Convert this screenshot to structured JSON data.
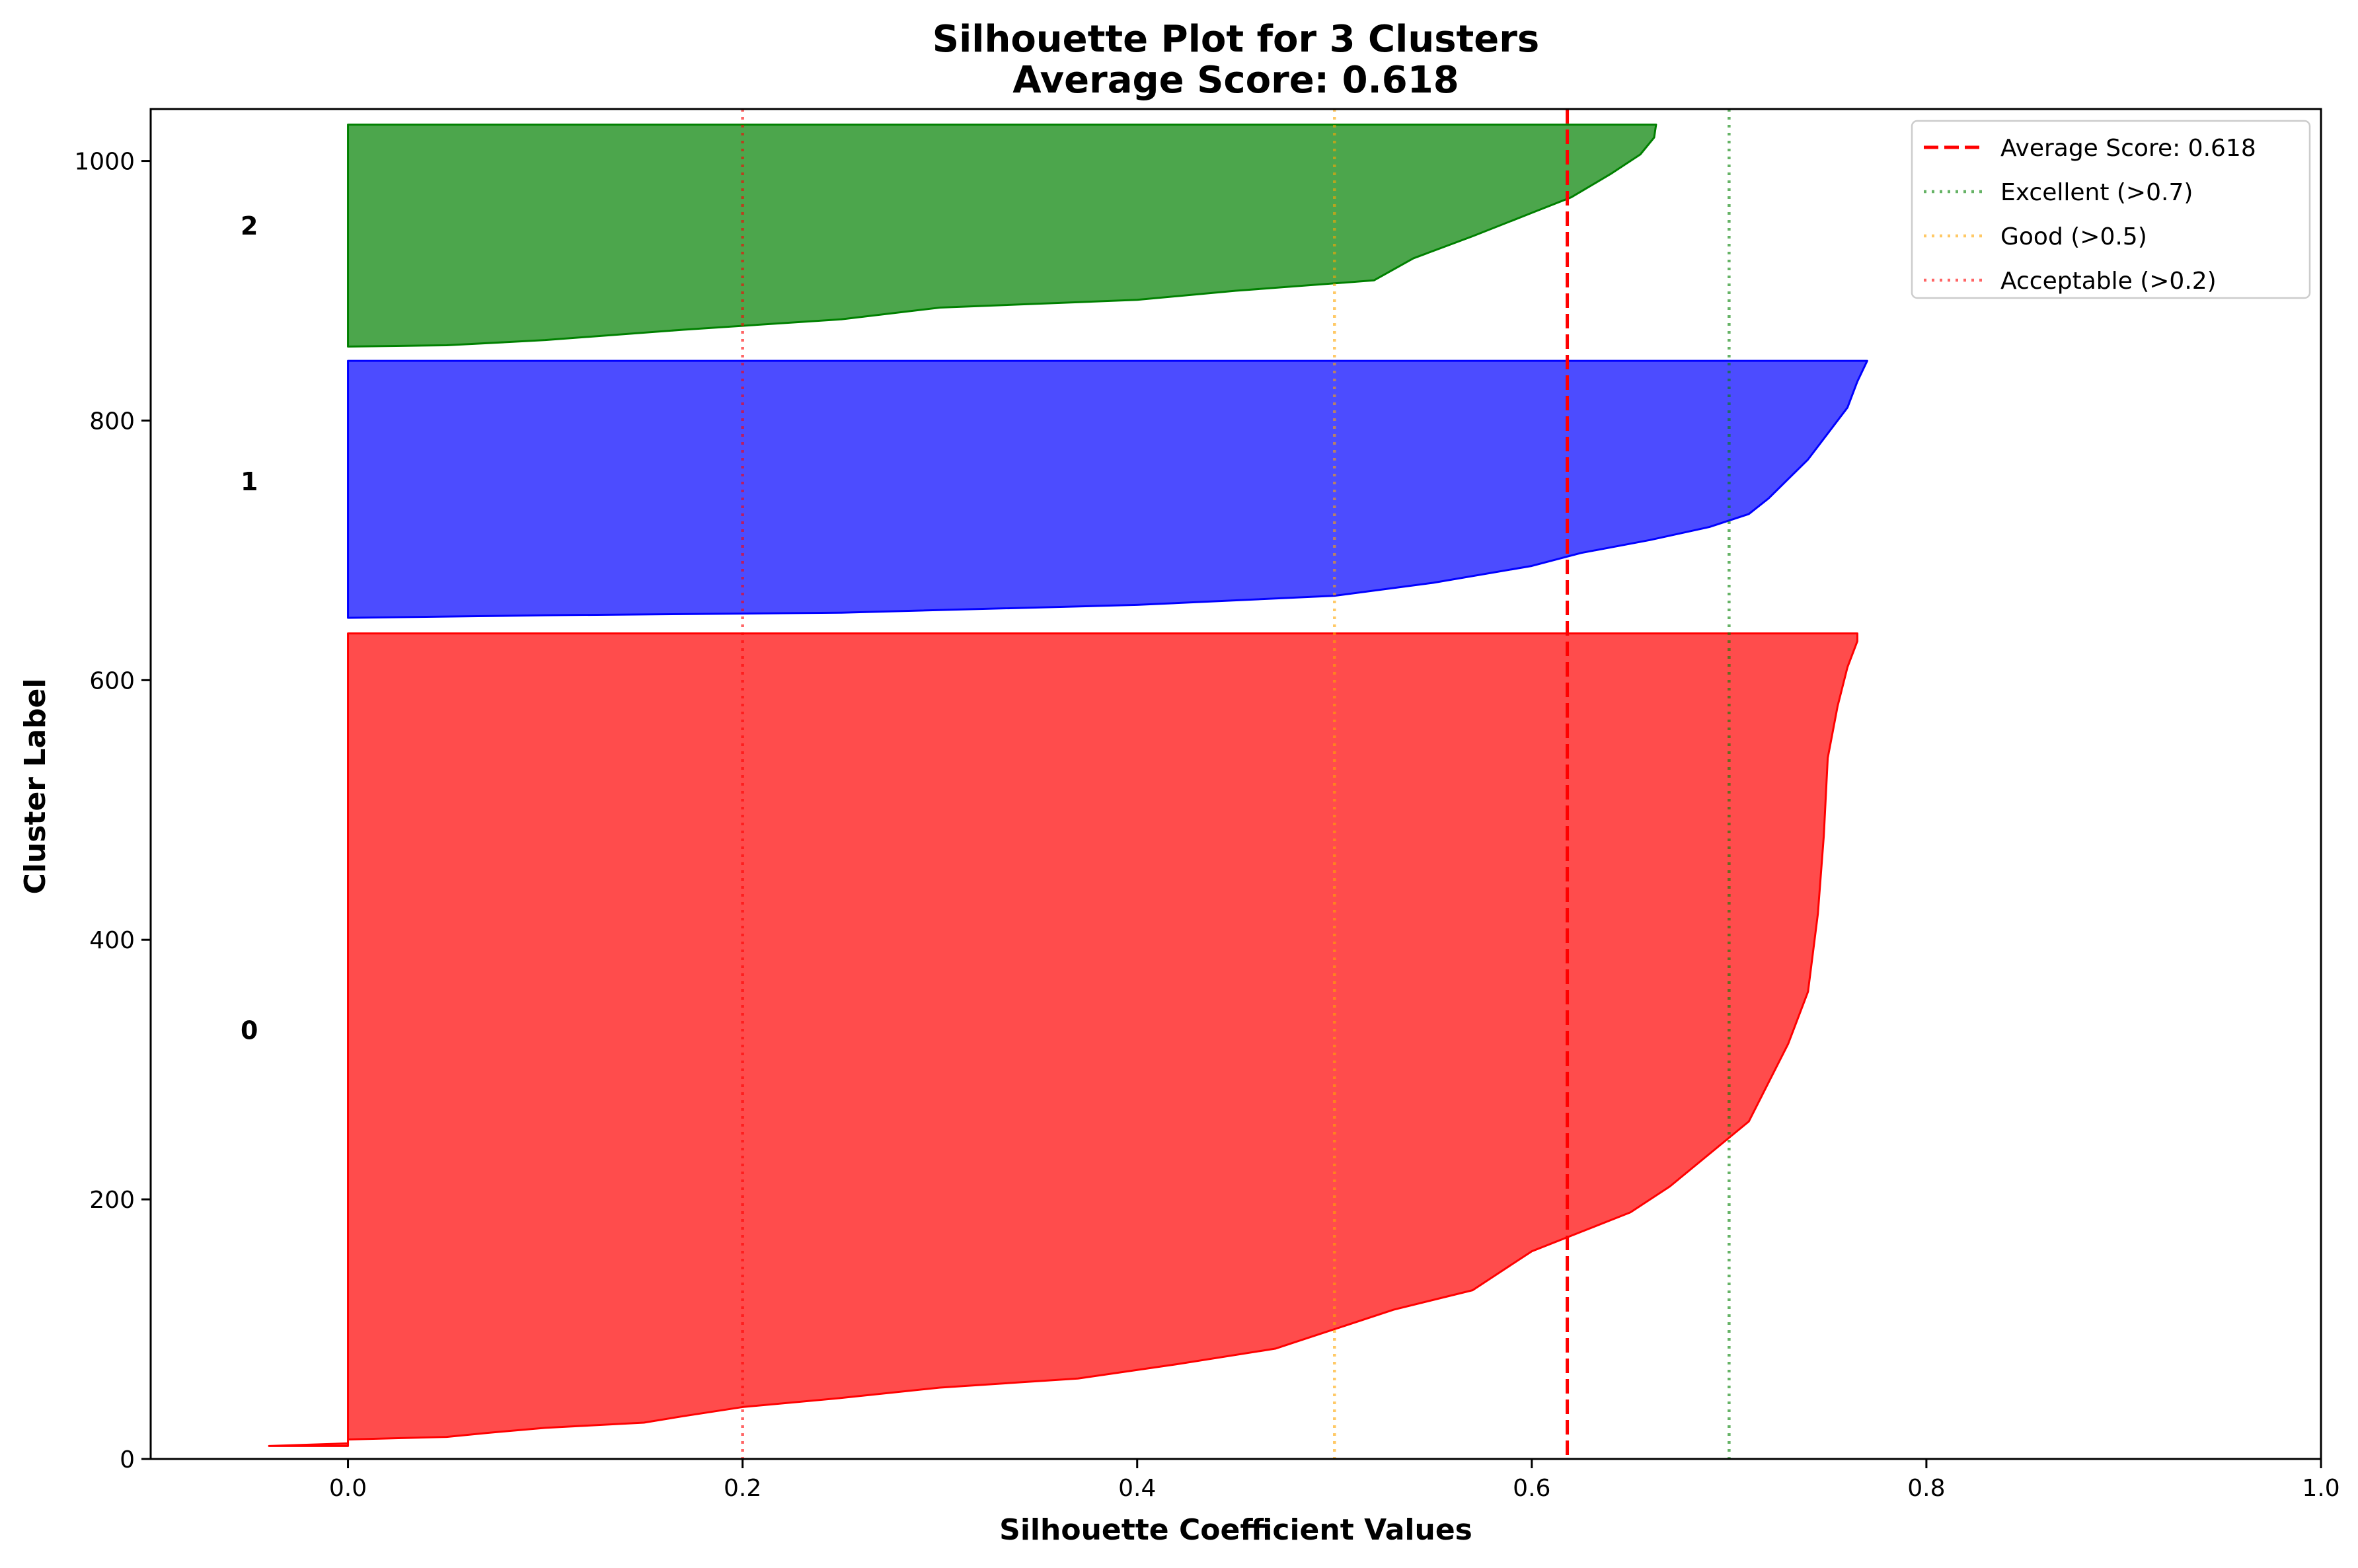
{
  "chart_data": {
    "type": "area",
    "title": "Silhouette Plot for 3 Clusters",
    "subtitle": "Average Score: 0.618",
    "xlabel": "Silhouette Coefficient Values",
    "ylabel": "Cluster Label",
    "xlim": [
      -0.1,
      1.0
    ],
    "ylim": [
      0,
      1040
    ],
    "xticks": [
      0.0,
      0.2,
      0.4,
      0.6,
      0.8,
      1.0
    ],
    "xtick_labels": [
      "0.0",
      "0.2",
      "0.4",
      "0.6",
      "0.8",
      "1.0"
    ],
    "yticks": [
      0,
      200,
      400,
      600,
      800,
      1000
    ],
    "ytick_labels": [
      "0",
      "200",
      "400",
      "600",
      "800",
      "1000"
    ],
    "grid": false,
    "legend_position": "top-right",
    "series": [
      {
        "name": "0",
        "color": "#ff0000",
        "y_start": 10,
        "y_end": 636,
        "label_y": 330,
        "points": [
          [
            -0.04,
            10
          ],
          [
            0.0,
            12
          ],
          [
            0.0,
            15
          ],
          [
            0.05,
            17
          ],
          [
            0.07,
            20
          ],
          [
            0.1,
            24
          ],
          [
            0.15,
            28
          ],
          [
            0.17,
            33
          ],
          [
            0.2,
            40
          ],
          [
            0.25,
            47
          ],
          [
            0.3,
            55
          ],
          [
            0.37,
            62
          ],
          [
            0.42,
            73
          ],
          [
            0.47,
            85
          ],
          [
            0.5,
            100
          ],
          [
            0.53,
            115
          ],
          [
            0.57,
            130
          ],
          [
            0.6,
            160
          ],
          [
            0.625,
            175
          ],
          [
            0.65,
            190
          ],
          [
            0.67,
            210
          ],
          [
            0.69,
            235
          ],
          [
            0.71,
            260
          ],
          [
            0.72,
            290
          ],
          [
            0.73,
            320
          ],
          [
            0.74,
            360
          ],
          [
            0.745,
            420
          ],
          [
            0.748,
            480
          ],
          [
            0.75,
            540
          ],
          [
            0.755,
            580
          ],
          [
            0.76,
            610
          ],
          [
            0.765,
            630
          ],
          [
            0.765,
            636
          ]
        ]
      },
      {
        "name": "1",
        "color": "#0000ff",
        "y_start": 648,
        "y_end": 846,
        "label_y": 753,
        "points": [
          [
            0.0,
            648
          ],
          [
            0.1,
            650
          ],
          [
            0.25,
            652
          ],
          [
            0.4,
            658
          ],
          [
            0.5,
            665
          ],
          [
            0.55,
            675
          ],
          [
            0.6,
            688
          ],
          [
            0.625,
            698
          ],
          [
            0.66,
            708
          ],
          [
            0.69,
            718
          ],
          [
            0.71,
            728
          ],
          [
            0.72,
            740
          ],
          [
            0.73,
            755
          ],
          [
            0.74,
            770
          ],
          [
            0.75,
            790
          ],
          [
            0.76,
            810
          ],
          [
            0.765,
            830
          ],
          [
            0.77,
            846
          ]
        ]
      },
      {
        "name": "2",
        "color": "#008000",
        "y_start": 857,
        "y_end": 1028,
        "label_y": 950,
        "points": [
          [
            0.0,
            857
          ],
          [
            0.05,
            858
          ],
          [
            0.1,
            862
          ],
          [
            0.17,
            870
          ],
          [
            0.25,
            878
          ],
          [
            0.3,
            887
          ],
          [
            0.4,
            893
          ],
          [
            0.45,
            900
          ],
          [
            0.52,
            908
          ],
          [
            0.54,
            925
          ],
          [
            0.57,
            942
          ],
          [
            0.6,
            960
          ],
          [
            0.62,
            972
          ],
          [
            0.64,
            990
          ],
          [
            0.655,
            1005
          ],
          [
            0.662,
            1018
          ],
          [
            0.663,
            1028
          ]
        ]
      }
    ],
    "reference_lines": [
      {
        "name": "Average Score: 0.618",
        "x": 0.618,
        "color": "#ff0000",
        "style": "dashed",
        "opacity": 1.0
      },
      {
        "name": "Excellent (>0.7)",
        "x": 0.7,
        "color": "#008000",
        "style": "dotted",
        "opacity": 0.6
      },
      {
        "name": "Good (>0.5)",
        "x": 0.5,
        "color": "#ffa500",
        "style": "dotted",
        "opacity": 0.6
      },
      {
        "name": "Acceptable (>0.2)",
        "x": 0.2,
        "color": "#ff0000",
        "style": "dotted",
        "opacity": 0.6
      }
    ]
  }
}
